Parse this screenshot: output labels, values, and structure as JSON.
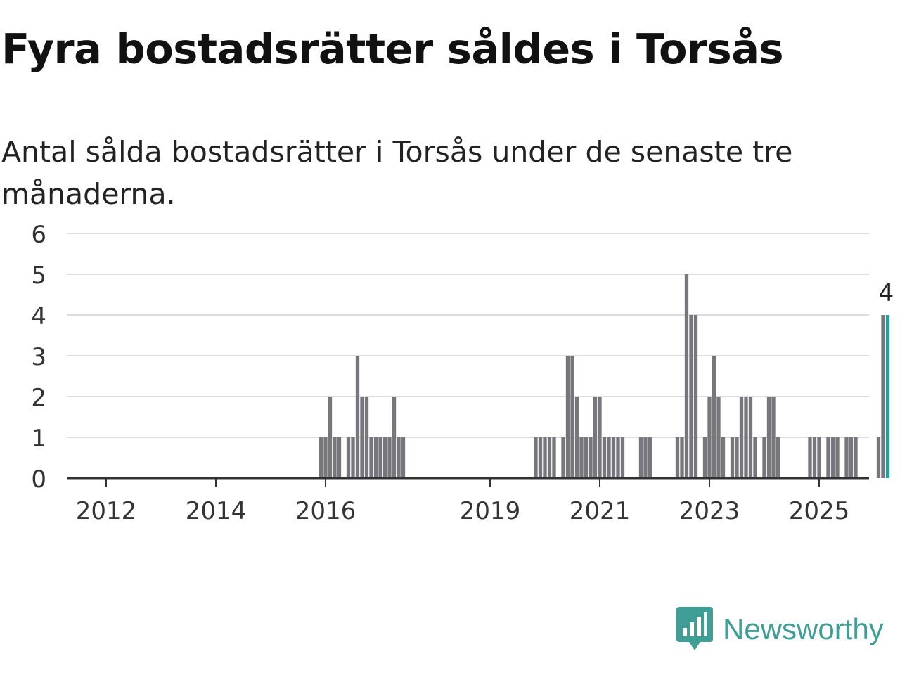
{
  "title": "Fyra bostadsrätter såldes i Torsås",
  "subtitle": "Antal sålda bostadsrätter i Torsås under de senaste tre månaderna.",
  "brand": {
    "name": "Newsworthy",
    "icon": "newsworthy-logo-icon",
    "color": "#3f9e96"
  },
  "chart_data": {
    "type": "bar",
    "x_unit": "month",
    "x_start": "2011-01",
    "x_ticks": [
      "2012",
      "2014",
      "2016",
      "2019",
      "2021",
      "2023",
      "2025"
    ],
    "y_ticks": [
      "0",
      "1",
      "2",
      "3",
      "4",
      "5",
      "6"
    ],
    "ylim": [
      0,
      6
    ],
    "grid": true,
    "bar_color": "#77767d",
    "highlight_color": "#2a9d98",
    "highlight_label": "4",
    "values": [
      0,
      0,
      0,
      0,
      0,
      0,
      0,
      0,
      0,
      0,
      0,
      0,
      0,
      0,
      0,
      0,
      0,
      0,
      0,
      0,
      0,
      0,
      0,
      0,
      0,
      0,
      0,
      0,
      0,
      0,
      0,
      0,
      0,
      0,
      0,
      0,
      0,
      0,
      0,
      0,
      0,
      0,
      0,
      0,
      0,
      0,
      0,
      0,
      0,
      0,
      0,
      0,
      0,
      0,
      0,
      0,
      0,
      0,
      0,
      1,
      1,
      2,
      1,
      1,
      0,
      1,
      1,
      3,
      2,
      2,
      1,
      1,
      1,
      1,
      1,
      2,
      1,
      1,
      0,
      0,
      0,
      0,
      0,
      0,
      0,
      0,
      0,
      0,
      0,
      0,
      0,
      0,
      0,
      0,
      0,
      0,
      0,
      0,
      0,
      0,
      0,
      0,
      0,
      0,
      0,
      0,
      1,
      1,
      1,
      1,
      1,
      0,
      1,
      3,
      3,
      2,
      1,
      1,
      1,
      2,
      2,
      1,
      1,
      1,
      1,
      1,
      0,
      0,
      0,
      1,
      1,
      1,
      0,
      0,
      0,
      0,
      0,
      1,
      1,
      5,
      4,
      4,
      0,
      1,
      2,
      3,
      2,
      1,
      0,
      1,
      1,
      2,
      2,
      2,
      1,
      0,
      1,
      2,
      2,
      1,
      0,
      0,
      0,
      0,
      0,
      0,
      1,
      1,
      1,
      0,
      1,
      1,
      1,
      0,
      1,
      1,
      1,
      0,
      0,
      0,
      0,
      1,
      4,
      4
    ]
  }
}
